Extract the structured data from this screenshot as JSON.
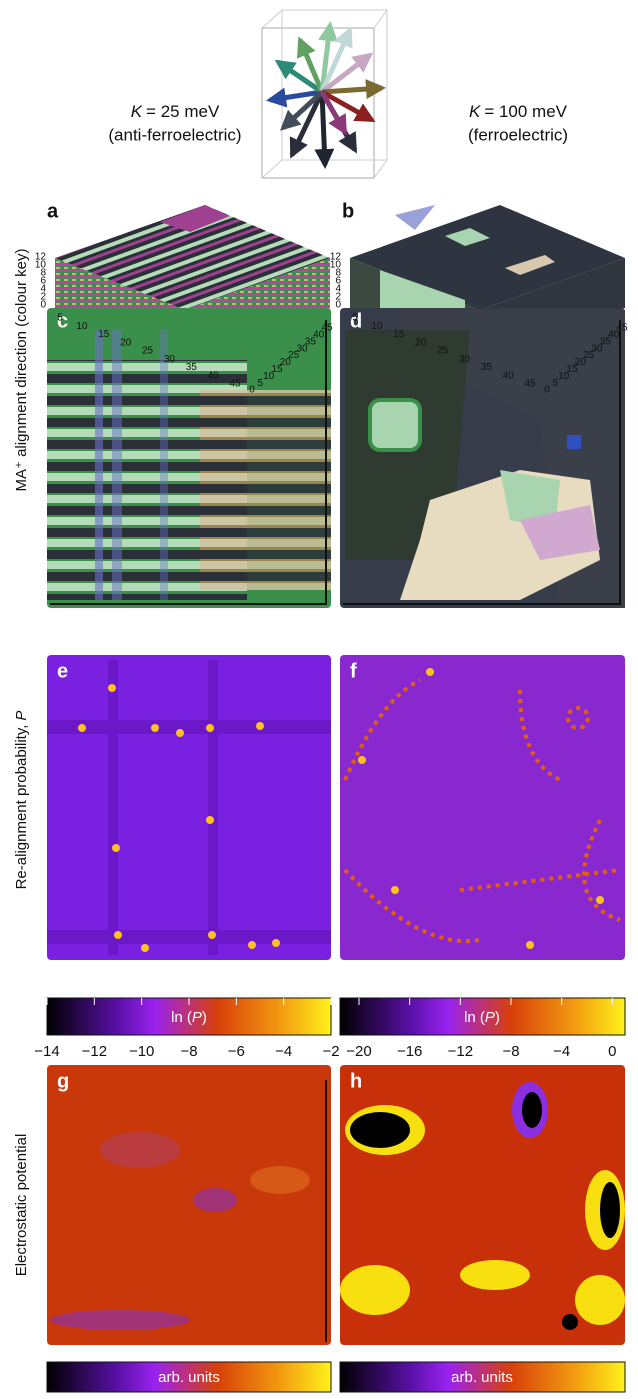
{
  "header": {
    "left": {
      "symbol": "K",
      "value": "= 25 meV",
      "note": "(anti-ferroelectric)"
    },
    "right": {
      "symbol": "K",
      "value": "= 100 meV",
      "note": "(ferroelectric)"
    }
  },
  "row_labels": {
    "alignment": "MA⁺ alignment direction (colour key)",
    "probability": {
      "text": "Re-alignment probability,",
      "symbol": "P"
    },
    "potential": "Electrostatic potential"
  },
  "panels": [
    "a",
    "b",
    "c",
    "d",
    "e",
    "f",
    "g",
    "h"
  ],
  "box_axes": {
    "height_ticks": [
      0,
      2,
      4,
      6,
      8,
      10,
      12
    ],
    "front_ticks": [
      5,
      10,
      15,
      20,
      25,
      30,
      35,
      40,
      45
    ],
    "side_ticks": [
      0,
      5,
      10,
      15,
      20,
      25,
      30,
      35,
      40,
      45
    ]
  },
  "colorbars": {
    "left": {
      "label": {
        "prefix": "ln (",
        "symbol": "P",
        "suffix": ")"
      },
      "xlim": [
        -14,
        -2
      ],
      "ticks": [
        {
          "value": -14,
          "label": "−14"
        },
        {
          "value": -12,
          "label": "−12"
        },
        {
          "value": -10,
          "label": "−10"
        },
        {
          "value": -8,
          "label": "−8"
        },
        {
          "value": -6,
          "label": "−6"
        },
        {
          "value": -4,
          "label": "−4"
        },
        {
          "value": -2,
          "label": "−2"
        }
      ]
    },
    "right": {
      "label": {
        "prefix": "ln (",
        "symbol": "P",
        "suffix": ")"
      },
      "xlim": [
        -21.5,
        1
      ],
      "ticks": [
        {
          "value": -20,
          "label": "−20"
        },
        {
          "value": -16,
          "label": "−16"
        },
        {
          "value": -12,
          "label": "−12"
        },
        {
          "value": -8,
          "label": "−8"
        },
        {
          "value": -4,
          "label": "−4"
        },
        0
      ]
    },
    "potential": "arb. units"
  }
}
